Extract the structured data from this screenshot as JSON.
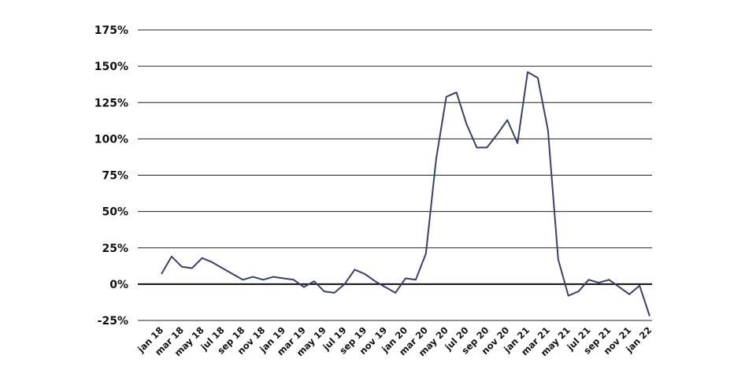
{
  "chart_data": {
    "type": "line",
    "title": "",
    "xlabel": "",
    "ylabel": "",
    "ylim": [
      -25,
      175
    ],
    "ytick_values": [
      -25,
      0,
      25,
      50,
      75,
      100,
      125,
      150,
      175
    ],
    "ytick_labels": [
      "-25%",
      "0%",
      "25%",
      "50%",
      "75%",
      "100%",
      "125%",
      "150%",
      "175%"
    ],
    "grid": true,
    "legend": "none",
    "line_color": "#3b3f6e",
    "x": [
      "jan 18",
      "feb 18",
      "mar 18",
      "apr 18",
      "may 18",
      "jun 18",
      "jul 18",
      "aug 18",
      "sep 18",
      "oct 18",
      "nov 18",
      "dec 18",
      "jan 19",
      "feb 19",
      "mar 19",
      "apr 19",
      "may 19",
      "jun 19",
      "jul 19",
      "aug 19",
      "sep 19",
      "oct 19",
      "nov 19",
      "dec 19",
      "jan 20",
      "feb 20",
      "mar 20",
      "apr 20",
      "may 20",
      "jun 20",
      "jul 20",
      "aug 20",
      "sep 20",
      "oct 20",
      "nov 20",
      "dec 20",
      "jan 21",
      "feb 21",
      "mar 21",
      "apr 21",
      "may 21",
      "jun 21",
      "jul 21",
      "aug 21",
      "sep 21",
      "oct 21",
      "nov 21",
      "dec 21",
      "jan 22"
    ],
    "xtick_labels": [
      "jan 18",
      "mar 18",
      "may 18",
      "jul 18",
      "sep 18",
      "nov 18",
      "jan 19",
      "mar 19",
      "may 19",
      "jul 19",
      "sep 19",
      "nov 19",
      "jan 20",
      "mar 20",
      "may 20",
      "jul 20",
      "sep 20",
      "nov 20",
      "jan 21",
      "mar 21",
      "may 21",
      "jul 21",
      "sep 21",
      "nov 21",
      "jan 22"
    ],
    "series": [
      {
        "values": [
          7,
          19,
          12,
          11,
          18,
          15,
          11,
          7,
          3,
          5,
          3,
          5,
          4,
          3,
          -2,
          2,
          -5,
          -6,
          0,
          10,
          7,
          2,
          -2,
          -6,
          4,
          3,
          21,
          86,
          129,
          132,
          110,
          94,
          94,
          103,
          113,
          97,
          146,
          142,
          106,
          17,
          -8,
          -5,
          3,
          1,
          3,
          -2,
          -7,
          -1,
          -22
        ]
      }
    ]
  }
}
